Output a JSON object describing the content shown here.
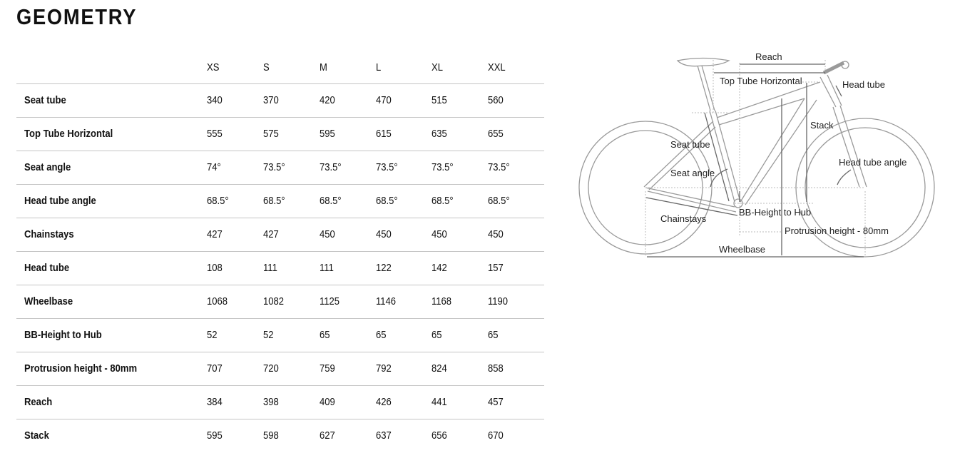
{
  "title": "GEOMETRY",
  "sizes": [
    "XS",
    "S",
    "M",
    "L",
    "XL",
    "XXL"
  ],
  "rows": [
    {
      "label": "Seat tube",
      "values": [
        "340",
        "370",
        "420",
        "470",
        "515",
        "560"
      ]
    },
    {
      "label": "Top Tube Horizontal",
      "values": [
        "555",
        "575",
        "595",
        "615",
        "635",
        "655"
      ]
    },
    {
      "label": "Seat angle",
      "values": [
        "74°",
        "73.5°",
        "73.5°",
        "73.5°",
        "73.5°",
        "73.5°"
      ]
    },
    {
      "label": "Head tube angle",
      "values": [
        "68.5°",
        "68.5°",
        "68.5°",
        "68.5°",
        "68.5°",
        "68.5°"
      ]
    },
    {
      "label": "Chainstays",
      "values": [
        "427",
        "427",
        "450",
        "450",
        "450",
        "450"
      ]
    },
    {
      "label": "Head tube",
      "values": [
        "108",
        "111",
        "111",
        "122",
        "142",
        "157"
      ]
    },
    {
      "label": "Wheelbase",
      "values": [
        "1068",
        "1082",
        "1125",
        "1146",
        "1168",
        "1190"
      ]
    },
    {
      "label": "BB-Height to Hub",
      "values": [
        "52",
        "52",
        "65",
        "65",
        "65",
        "65"
      ]
    },
    {
      "label": "Protrusion height - 80mm",
      "values": [
        "707",
        "720",
        "759",
        "792",
        "824",
        "858"
      ]
    },
    {
      "label": "Reach",
      "values": [
        "384",
        "398",
        "409",
        "426",
        "441",
        "457"
      ]
    },
    {
      "label": "Stack",
      "values": [
        "595",
        "598",
        "627",
        "637",
        "656",
        "670"
      ]
    }
  ],
  "diagram": {
    "reach": "Reach",
    "top_tube": "Top Tube Horizontal",
    "head_tube": "Head tube",
    "stack": "Stack",
    "seat_tube": "Seat tube",
    "seat_angle": "Seat angle",
    "head_tube_angle": "Head tube angle",
    "chainstays": "Chainstays",
    "bb_height": "BB-Height to Hub",
    "protrusion": "Protrusion height - 80mm",
    "wheelbase": "Wheelbase"
  }
}
